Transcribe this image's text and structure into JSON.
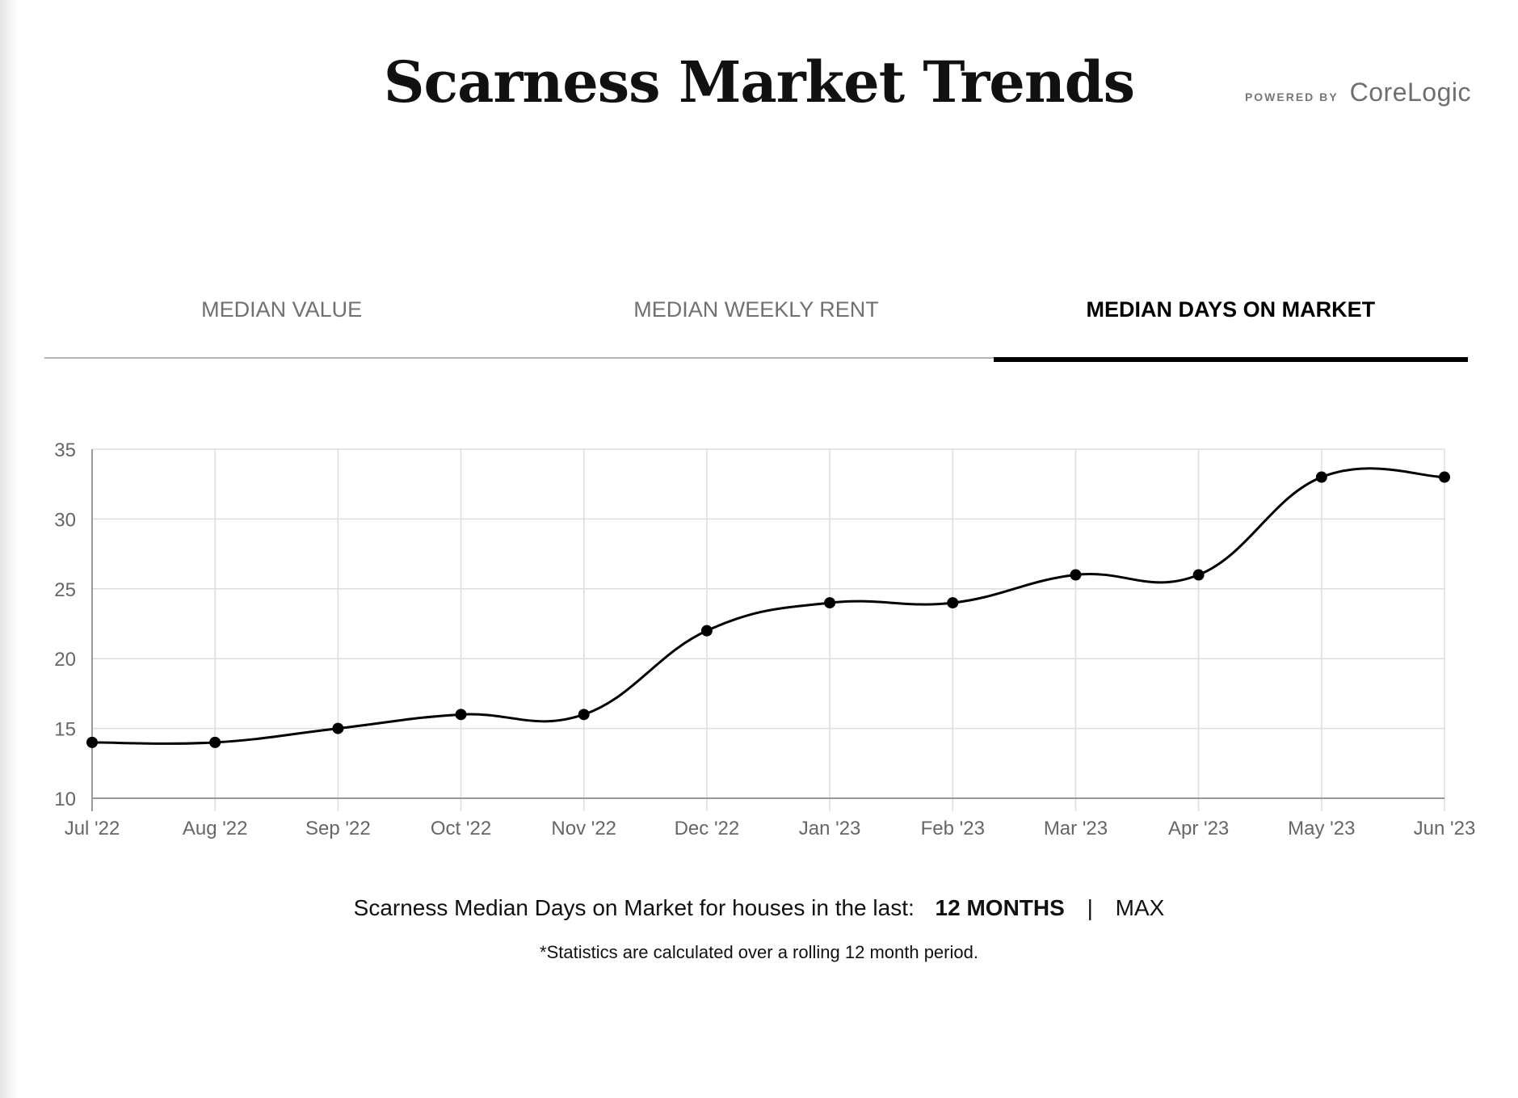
{
  "header": {
    "title": "Scarness Market Trends",
    "powered_by": "POWERED BY",
    "brand": "CoreLogic"
  },
  "tabs": [
    {
      "label": "MEDIAN VALUE",
      "active": false
    },
    {
      "label": "MEDIAN WEEKLY RENT",
      "active": false
    },
    {
      "label": "MEDIAN DAYS ON MARKET",
      "active": true
    }
  ],
  "footer": {
    "prefix": "Scarness Median Days on Market for houses in the last:",
    "range_selected": "12 MONTHS",
    "separator": "|",
    "range_other": "MAX",
    "note": "*Statistics are calculated over a rolling 12 month period."
  },
  "chart_data": {
    "type": "line",
    "title": "",
    "xlabel": "",
    "ylabel": "",
    "categories": [
      "Jul '22",
      "Aug '22",
      "Sep '22",
      "Oct '22",
      "Nov '22",
      "Dec '22",
      "Jan '23",
      "Feb '23",
      "Mar '23",
      "Apr '23",
      "May '23",
      "Jun '23"
    ],
    "series": [
      {
        "values": [
          14,
          14,
          15,
          16,
          16,
          22,
          24,
          24,
          26,
          26,
          33,
          33
        ]
      }
    ],
    "ylim": [
      10,
      35
    ],
    "yticks": [
      10,
      15,
      20,
      25,
      30,
      35
    ],
    "grid": true,
    "legend": "none",
    "colors": {
      "line": "#000000",
      "grid": "#dddddd",
      "axis": "#999999",
      "tick_text": "#666666"
    }
  }
}
